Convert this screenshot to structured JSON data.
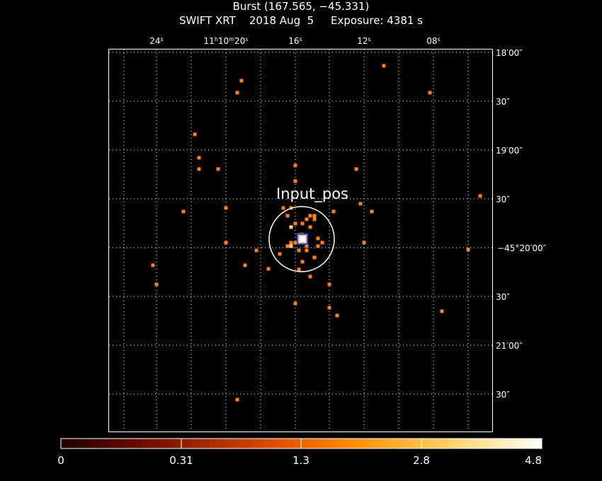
{
  "header": {
    "title": "Burst (167.565, −45.331)",
    "subtitle": "SWIFT XRT    2018 Aug  5     Exposure: 4381 s"
  },
  "axes": {
    "ra_labels": [
      {
        "id": "ra-24s",
        "text": "24s"
      },
      {
        "id": "ra-11h10m20s",
        "text": "11h10m20s"
      },
      {
        "id": "ra-16s",
        "text": "16s"
      },
      {
        "id": "ra-12s",
        "text": "12s"
      },
      {
        "id": "ra-08s",
        "text": "08s"
      }
    ],
    "dec_labels": [
      {
        "id": "dec-18-00",
        "text": "18′00″"
      },
      {
        "id": "dec-18-30",
        "text": "30″"
      },
      {
        "id": "dec-19-00",
        "text": "19′00″"
      },
      {
        "id": "dec-19-30",
        "text": "30″"
      },
      {
        "id": "dec-20-00",
        "text": "−45°20′00″"
      },
      {
        "id": "dec-20-30",
        "text": "30″"
      },
      {
        "id": "dec-21-00",
        "text": "21′00″"
      },
      {
        "id": "dec-21-30",
        "text": "30″"
      }
    ]
  },
  "annotation": {
    "label": "Input_pos"
  },
  "colorbar": {
    "ticks": [
      "0",
      "0.31",
      "1.3",
      "2.8",
      "4.8"
    ],
    "colors": [
      "#5a0000",
      "#b22b00",
      "#ff7a00",
      "#ffd060",
      "#ffffff"
    ]
  },
  "colors": {
    "event": "#ff7f1a",
    "bright_event": "#ffd070",
    "hot_event": "#ffffff",
    "source_blue": "#3040ff",
    "grid": "#ffffff"
  },
  "chart_data": {
    "type": "scatter",
    "ra_tick_seconds": [
      24,
      20,
      16,
      12,
      8
    ],
    "dec_tick_arcsec_offsets": [
      0,
      30,
      60,
      90,
      120,
      150,
      180,
      210
    ],
    "color_scale_range": [
      0,
      4.8
    ],
    "grid": true,
    "events": [
      [
        542,
        93
      ],
      [
        341,
        114
      ],
      [
        335,
        131
      ],
      [
        607,
        131
      ],
      [
        275,
        190
      ],
      [
        281,
        223
      ],
      [
        281,
        239
      ],
      [
        308,
        239
      ],
      [
        417,
        234
      ],
      [
        503,
        239
      ],
      [
        417,
        256
      ],
      [
        678,
        277
      ],
      [
        509,
        288
      ],
      [
        319,
        294
      ],
      [
        259,
        299
      ],
      [
        471,
        299
      ],
      [
        525,
        299
      ],
      [
        400,
        294
      ],
      [
        411,
        294
      ],
      [
        438,
        305
      ],
      [
        444,
        305
      ],
      [
        406,
        305
      ],
      [
        433,
        310
      ],
      [
        417,
        316
      ],
      [
        444,
        310
      ],
      [
        427,
        316
      ],
      [
        411,
        321
      ],
      [
        438,
        321
      ],
      [
        422,
        332
      ],
      [
        449,
        337
      ],
      [
        455,
        343
      ],
      [
        417,
        343
      ],
      [
        406,
        348
      ],
      [
        433,
        348
      ],
      [
        422,
        354
      ],
      [
        433,
        354
      ],
      [
        449,
        348
      ],
      [
        319,
        343
      ],
      [
        362,
        354
      ],
      [
        395,
        359
      ],
      [
        514,
        343
      ],
      [
        661,
        353
      ],
      [
        411,
        343
      ],
      [
        427,
        370
      ],
      [
        444,
        364
      ],
      [
        346,
        375
      ],
      [
        379,
        380
      ],
      [
        216,
        375
      ],
      [
        422,
        381
      ],
      [
        438,
        391
      ],
      [
        465,
        402
      ],
      [
        221,
        402
      ],
      [
        417,
        429
      ],
      [
        465,
        435
      ],
      [
        476,
        446
      ],
      [
        624,
        440
      ],
      [
        335,
        565
      ]
    ],
    "bright_events": [
      [
        411,
        321
      ],
      [
        411,
        348
      ],
      [
        427,
        332
      ]
    ],
    "source": {
      "x": 427,
      "y": 338
    }
  }
}
